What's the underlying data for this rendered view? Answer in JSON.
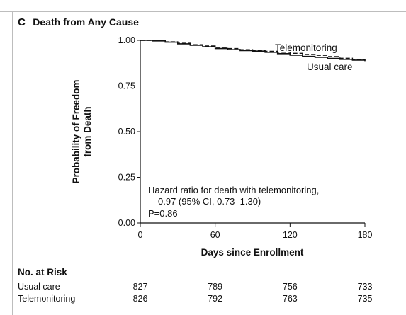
{
  "chart_data": {
    "type": "line",
    "panel_letter": "C",
    "title": "Death from Any Cause",
    "xlabel": "Days since Enrollment",
    "ylabel": [
      "Probability of Freedom",
      "from Death"
    ],
    "xlim": [
      0,
      180
    ],
    "ylim": [
      0,
      1
    ],
    "x_ticks": [
      0,
      60,
      120,
      180
    ],
    "y_ticks": [
      0.0,
      0.25,
      0.5,
      0.75,
      1.0
    ],
    "y_tick_labels": [
      "0.00",
      "0.25",
      "0.50",
      "0.75",
      "1.00"
    ],
    "series": [
      {
        "name": "Telemonitoring",
        "style": "dashed",
        "x": [
          0,
          10,
          20,
          30,
          40,
          50,
          60,
          70,
          80,
          90,
          100,
          110,
          120,
          130,
          140,
          150,
          160,
          170,
          180
        ],
        "y": [
          1.0,
          0.998,
          0.992,
          0.984,
          0.976,
          0.969,
          0.961,
          0.955,
          0.949,
          0.945,
          0.94,
          0.935,
          0.929,
          0.923,
          0.918,
          0.911,
          0.902,
          0.895,
          0.889
        ]
      },
      {
        "name": "Usual care",
        "style": "solid",
        "x": [
          0,
          10,
          20,
          30,
          40,
          50,
          60,
          70,
          80,
          90,
          100,
          110,
          120,
          130,
          140,
          150,
          160,
          170,
          180
        ],
        "y": [
          1.0,
          0.997,
          0.99,
          0.981,
          0.973,
          0.965,
          0.955,
          0.949,
          0.944,
          0.941,
          0.935,
          0.927,
          0.919,
          0.912,
          0.907,
          0.901,
          0.896,
          0.892,
          0.886
        ]
      }
    ],
    "annotation": {
      "line1": "Hazard ratio for death with telemonitoring,",
      "line2": "0.97 (95% CI, 0.73–1.30)",
      "line3": "P=0.86"
    },
    "risk_table": {
      "title": "No. at Risk",
      "rows": [
        {
          "label": "Usual care",
          "values": [
            "827",
            "789",
            "756",
            "733"
          ]
        },
        {
          "label": "Telemonitoring",
          "values": [
            "826",
            "792",
            "763",
            "735"
          ]
        }
      ]
    },
    "colors": {
      "lines": "#111111",
      "axis": "#111111",
      "rules": "#bdbdbd"
    },
    "grid": false
  }
}
